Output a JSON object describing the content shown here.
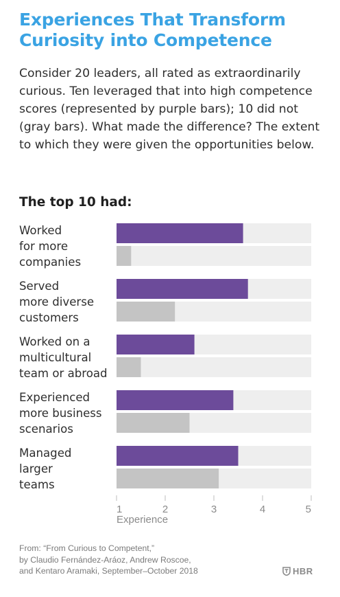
{
  "header": {
    "title": "Experiences That Transform Curiosity into Competence",
    "intro": "Consider 20 leaders, all rated as extraordinarily curious. Ten leveraged that into high competence scores (represented by purple bars); 10 did not (gray bars). What made the difference? The extent to which they were given the opportunities below.",
    "subhead": "The top 10 had:"
  },
  "chart_data": {
    "type": "bar",
    "orientation": "horizontal",
    "categories": [
      "Worked for more companies",
      "Served more diverse customers",
      "Worked on a multicultural team or abroad",
      "Experienced more business scenarios",
      "Managed larger teams"
    ],
    "series": [
      {
        "values": [
          3.6,
          3.7,
          2.6,
          3.4,
          3.5
        ]
      },
      {
        "values": [
          1.3,
          2.2,
          1.5,
          2.5,
          3.1
        ]
      }
    ],
    "xlabel": "Experience",
    "xlim": [
      1,
      5
    ],
    "xticks": [
      "1",
      "2",
      "3",
      "4",
      "5"
    ],
    "colors": {
      "top10": "#6c4b9a",
      "others": "#c4c4c4",
      "track": "#eeeeee",
      "tick": "#bdbdbd"
    },
    "grid": false
  },
  "categoryLines": [
    [
      "Worked",
      "for more",
      "companies"
    ],
    [
      "Served",
      "more diverse",
      "customers"
    ],
    [
      "Worked on a",
      "multicultural",
      "team or abroad"
    ],
    [
      "Experienced",
      "more business",
      "scenarios"
    ],
    [
      "Managed",
      "larger",
      "teams"
    ]
  ],
  "source": {
    "line1": "From: “From Curious to Competent,”",
    "line2": "by Claudio Fernández-Aráoz, Andrew Roscoe,",
    "line3": "and Kentaro Aramaki, September–October 2018"
  },
  "brand": {
    "logo_text": "HBR",
    "logo_icon": "hbr-shield-icon"
  }
}
